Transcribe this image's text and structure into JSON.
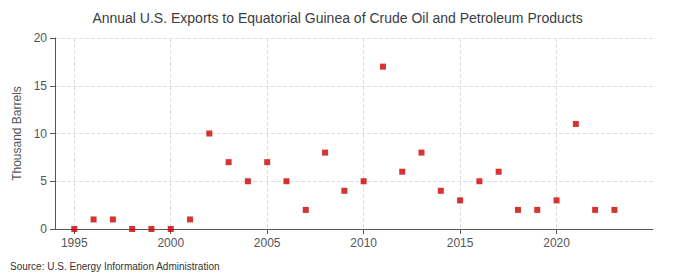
{
  "chart_data": {
    "type": "scatter",
    "title": "Annual U.S. Exports to Equatorial Guinea of Crude Oil and Petroleum Products",
    "ylabel": "Thousand Barrels",
    "annotation": "Source: U.S. Energy Information Administration",
    "x": [
      1995,
      1996,
      1997,
      1998,
      1999,
      2000,
      2001,
      2002,
      2003,
      2004,
      2005,
      2006,
      2007,
      2008,
      2009,
      2010,
      2011,
      2012,
      2013,
      2014,
      2015,
      2016,
      2017,
      2018,
      2019,
      2020,
      2021,
      2022,
      2023
    ],
    "values": [
      0,
      1,
      1,
      0,
      0,
      0,
      1,
      10,
      7,
      5,
      7,
      5,
      2,
      8,
      4,
      5,
      17,
      6,
      8,
      4,
      3,
      5,
      6,
      2,
      2,
      3,
      11,
      2,
      2
    ],
    "color": "#cc0000",
    "marker": "square",
    "xlim": [
      1994,
      2025
    ],
    "xticks": [
      1995,
      2000,
      2005,
      2010,
      2015,
      2020
    ],
    "ylim": [
      0,
      20
    ],
    "yticks": [
      0,
      5,
      10,
      15,
      20
    ],
    "grid": true
  }
}
